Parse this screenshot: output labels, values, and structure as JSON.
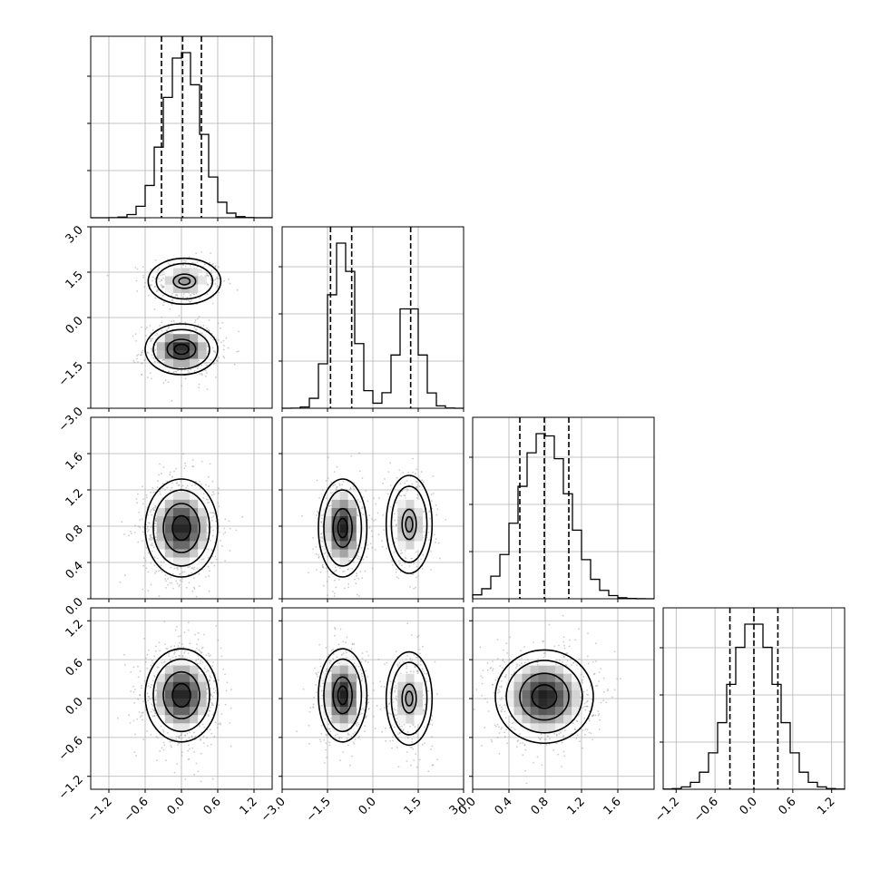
{
  "chart_data": {
    "type": "corner",
    "grid": true,
    "parameters": [
      {
        "range": [
          -1.5,
          1.5
        ],
        "ticks": [
          -1.2,
          -0.6,
          0.0,
          0.6,
          1.2
        ],
        "tick_labels": [
          "−1.2",
          "−0.6",
          "0.0",
          "0.6",
          "1.2"
        ],
        "quantiles": [
          -0.33,
          0.02,
          0.33
        ],
        "hist": {
          "mu": 0.02,
          "sigma": 0.3
        }
      },
      {
        "range": [
          -3.0,
          3.0
        ],
        "ticks": [
          -3.0,
          -1.5,
          0.0,
          1.5,
          3.0
        ],
        "tick_labels": [
          "−3.0",
          "−1.5",
          "0.0",
          "1.5",
          "3.0"
        ],
        "quantiles": [
          -1.4,
          -0.7,
          1.25
        ],
        "hist": {
          "mixture": [
            [
              0.62,
              -1.0,
              0.4
            ],
            [
              0.38,
              1.2,
              0.38
            ]
          ]
        }
      },
      {
        "range": [
          0.0,
          2.0
        ],
        "ticks": [
          0.0,
          0.4,
          0.8,
          1.2,
          1.6
        ],
        "tick_labels": [
          "0.0",
          "0.4",
          "0.8",
          "1.2",
          "1.6"
        ],
        "quantiles": [
          0.52,
          0.79,
          1.06
        ],
        "hist": {
          "mu": 0.79,
          "sigma": 0.27
        }
      },
      {
        "range": [
          -1.4,
          1.4
        ],
        "ticks": [
          -1.2,
          -0.6,
          0.0,
          0.6,
          1.2
        ],
        "tick_labels": [
          "−1.2",
          "−0.6",
          "0.0",
          "0.6",
          "1.2"
        ],
        "quantiles": [
          -0.37,
          0.0,
          0.37
        ],
        "hist": {
          "mu": 0.0,
          "sigma": 0.36
        }
      }
    ],
    "blobs": {
      "1-0": [
        {
          "cx": 0.05,
          "cy": 1.2,
          "sx": 0.3,
          "sy": 0.38,
          "w": 0.38
        },
        {
          "cx": 0.0,
          "cy": -1.05,
          "sx": 0.3,
          "sy": 0.42,
          "w": 0.62
        }
      ],
      "2-0": [
        {
          "cx": 0.0,
          "cy": 0.78,
          "sx": 0.3,
          "sy": 0.27,
          "w": 1
        }
      ],
      "2-1": [
        {
          "cx": -1.0,
          "cy": 0.78,
          "sx": 0.4,
          "sy": 0.27,
          "w": 0.62
        },
        {
          "cx": 1.2,
          "cy": 0.82,
          "sx": 0.38,
          "sy": 0.27,
          "w": 0.38
        }
      ],
      "3-0": [
        {
          "cx": 0.0,
          "cy": 0.05,
          "sx": 0.3,
          "sy": 0.36,
          "w": 1
        }
      ],
      "3-1": [
        {
          "cx": -1.0,
          "cy": 0.05,
          "sx": 0.4,
          "sy": 0.36,
          "w": 0.62
        },
        {
          "cx": 1.2,
          "cy": 0.0,
          "sx": 0.38,
          "sy": 0.36,
          "w": 0.38
        }
      ],
      "3-2": [
        {
          "cx": 0.79,
          "cy": 0.03,
          "sx": 0.27,
          "sy": 0.36,
          "w": 1
        }
      ]
    }
  }
}
